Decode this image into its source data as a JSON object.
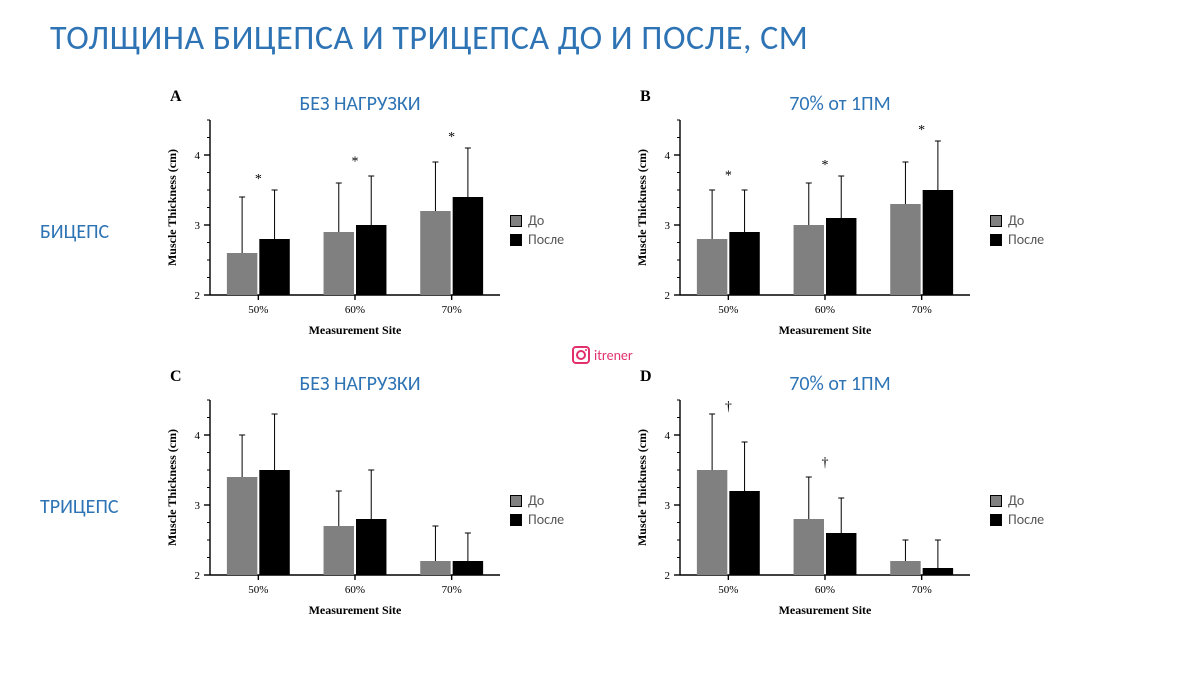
{
  "title": {
    "text": "ТОЛЩИНА БИЦЕПСА И ТРИЦЕПСА ДО И ПОСЛЕ, СМ",
    "color": "#2e74b5",
    "fontsize": 34
  },
  "rows": {
    "biceps": "БИЦЕПС",
    "triceps": "ТРИЦЕПС"
  },
  "legend": {
    "before": "До",
    "after": "После",
    "before_color": "#808080",
    "after_color": "#000000"
  },
  "watermark": "itrener",
  "axis": {
    "ylabel": "Muscle Thickness (cm)",
    "xlabel": "Measurement Site",
    "label_fontsize": 12,
    "tick_fontsize": 11,
    "font_family": "Times New Roman",
    "ylim": [
      2,
      4.5
    ],
    "yticks": [
      2,
      3,
      4
    ],
    "y_minor_step": 0.25,
    "axis_color": "#000000",
    "tick_color": "#000000"
  },
  "chart_style": {
    "bar_width": 0.35,
    "group_gap": 0.6,
    "error_cap": 6,
    "error_linewidth": 1,
    "axis_linewidth": 1.4,
    "sig_fontsize": 14
  },
  "panels": {
    "A": {
      "letter": "A",
      "title": "БЕЗ НАГРУЗКИ",
      "categories": [
        "50%",
        "60%",
        "70%"
      ],
      "series": [
        {
          "name": "before",
          "color": "#808080",
          "values": [
            2.6,
            2.9,
            3.2
          ],
          "errors": [
            0.8,
            0.7,
            0.7
          ]
        },
        {
          "name": "after",
          "color": "#000000",
          "values": [
            2.8,
            3.0,
            3.4
          ],
          "errors": [
            0.7,
            0.7,
            0.7
          ]
        }
      ],
      "sig_marks": [
        {
          "group": 0,
          "symbol": "*",
          "y": 3.6
        },
        {
          "group": 1,
          "symbol": "*",
          "y": 3.85
        },
        {
          "group": 2,
          "symbol": "*",
          "y": 4.2
        }
      ]
    },
    "B": {
      "letter": "B",
      "title": "70% от 1ПМ",
      "categories": [
        "50%",
        "60%",
        "70%"
      ],
      "series": [
        {
          "name": "before",
          "color": "#808080",
          "values": [
            2.8,
            3.0,
            3.3
          ],
          "errors": [
            0.7,
            0.6,
            0.6
          ]
        },
        {
          "name": "after",
          "color": "#000000",
          "values": [
            2.9,
            3.1,
            3.5
          ],
          "errors": [
            0.6,
            0.6,
            0.7
          ]
        }
      ],
      "sig_marks": [
        {
          "group": 0,
          "symbol": "*",
          "y": 3.65
        },
        {
          "group": 1,
          "symbol": "*",
          "y": 3.8
        },
        {
          "group": 2,
          "symbol": "*",
          "y": 4.3
        }
      ]
    },
    "C": {
      "letter": "C",
      "title": "БЕЗ НАГРУЗКИ",
      "categories": [
        "50%",
        "60%",
        "70%"
      ],
      "series": [
        {
          "name": "before",
          "color": "#808080",
          "values": [
            3.4,
            2.7,
            2.2
          ],
          "errors": [
            0.6,
            0.5,
            0.5
          ]
        },
        {
          "name": "after",
          "color": "#000000",
          "values": [
            3.5,
            2.8,
            2.2
          ],
          "errors": [
            0.8,
            0.7,
            0.4
          ]
        }
      ],
      "sig_marks": []
    },
    "D": {
      "letter": "D",
      "title": "70% от 1ПМ",
      "categories": [
        "50%",
        "60%",
        "70%"
      ],
      "series": [
        {
          "name": "before",
          "color": "#808080",
          "values": [
            3.5,
            2.8,
            2.2
          ],
          "errors": [
            0.8,
            0.6,
            0.3
          ]
        },
        {
          "name": "after",
          "color": "#000000",
          "values": [
            3.2,
            2.6,
            2.1
          ],
          "errors": [
            0.7,
            0.5,
            0.4
          ]
        }
      ],
      "sig_marks": [
        {
          "group": 0,
          "symbol": "†",
          "y": 4.35
        },
        {
          "group": 1,
          "symbol": "†",
          "y": 3.55
        }
      ]
    }
  }
}
